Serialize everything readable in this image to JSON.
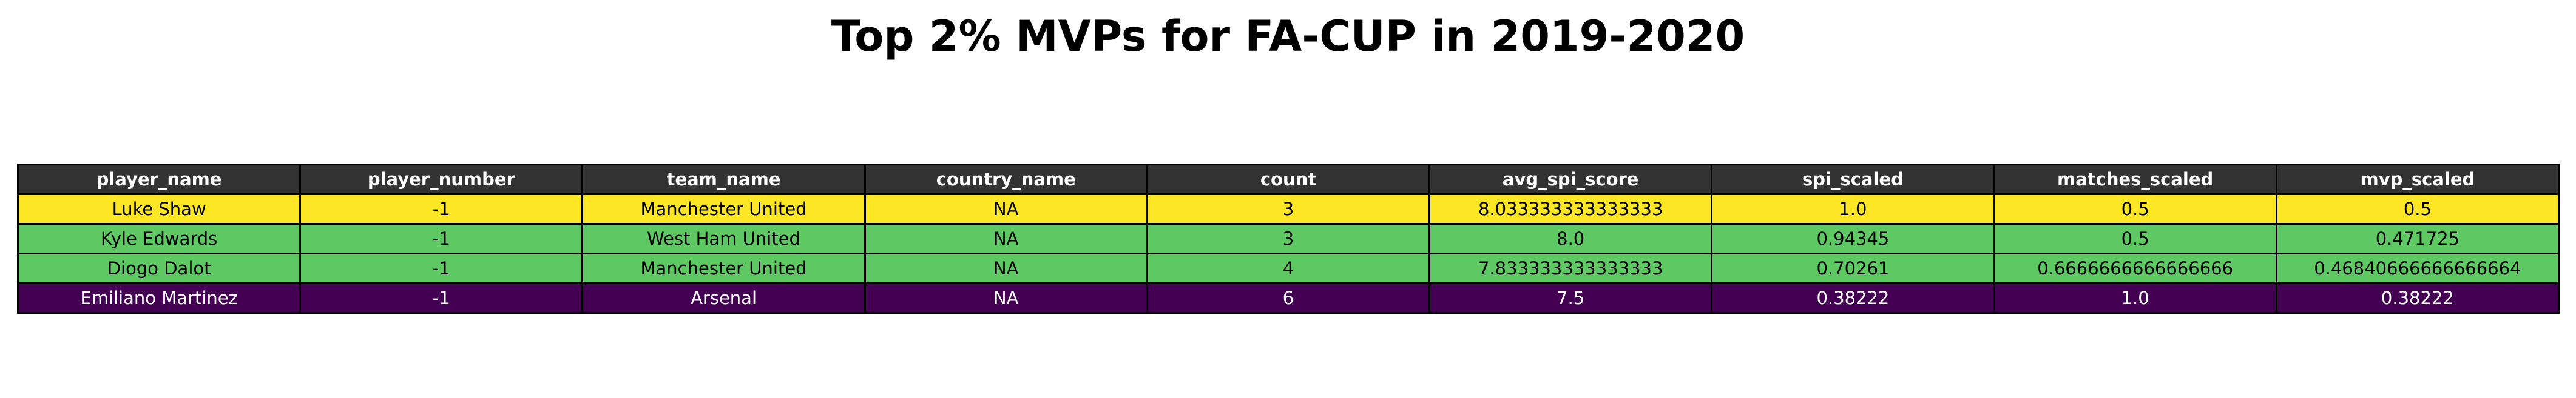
{
  "chart_data": {
    "type": "table",
    "title": "Top 2% MVPs for FA-CUP in 2019-2020",
    "columns": [
      "player_name",
      "player_number",
      "team_name",
      "country_name",
      "count",
      "avg_spi_score",
      "spi_scaled",
      "matches_scaled",
      "mvp_scaled"
    ],
    "rows": [
      {
        "cells": [
          "Luke Shaw",
          "-1",
          "Manchester United",
          "NA",
          "3",
          "8.033333333333333",
          "1.0",
          "0.5",
          "0.5"
        ],
        "color": "#fde725",
        "text_color": "#000000"
      },
      {
        "cells": [
          "Kyle Edwards",
          "-1",
          "West Ham United",
          "NA",
          "3",
          "8.0",
          "0.94345",
          "0.5",
          "0.471725"
        ],
        "color": "#5ec962",
        "text_color": "#000000"
      },
      {
        "cells": [
          "Diogo Dalot",
          "-1",
          "Manchester United",
          "NA",
          "4",
          "7.833333333333333",
          "0.70261",
          "0.6666666666666666",
          "0.46840666666666664"
        ],
        "color": "#5ec962",
        "text_color": "#000000"
      },
      {
        "cells": [
          "Emiliano Martinez",
          "-1",
          "Arsenal",
          "NA",
          "6",
          "7.5",
          "0.38222",
          "1.0",
          "0.38222"
        ],
        "color": "#440154",
        "text_color": "#ffffff"
      }
    ],
    "header_color": "#333333",
    "header_text_color": "#ffffff"
  }
}
